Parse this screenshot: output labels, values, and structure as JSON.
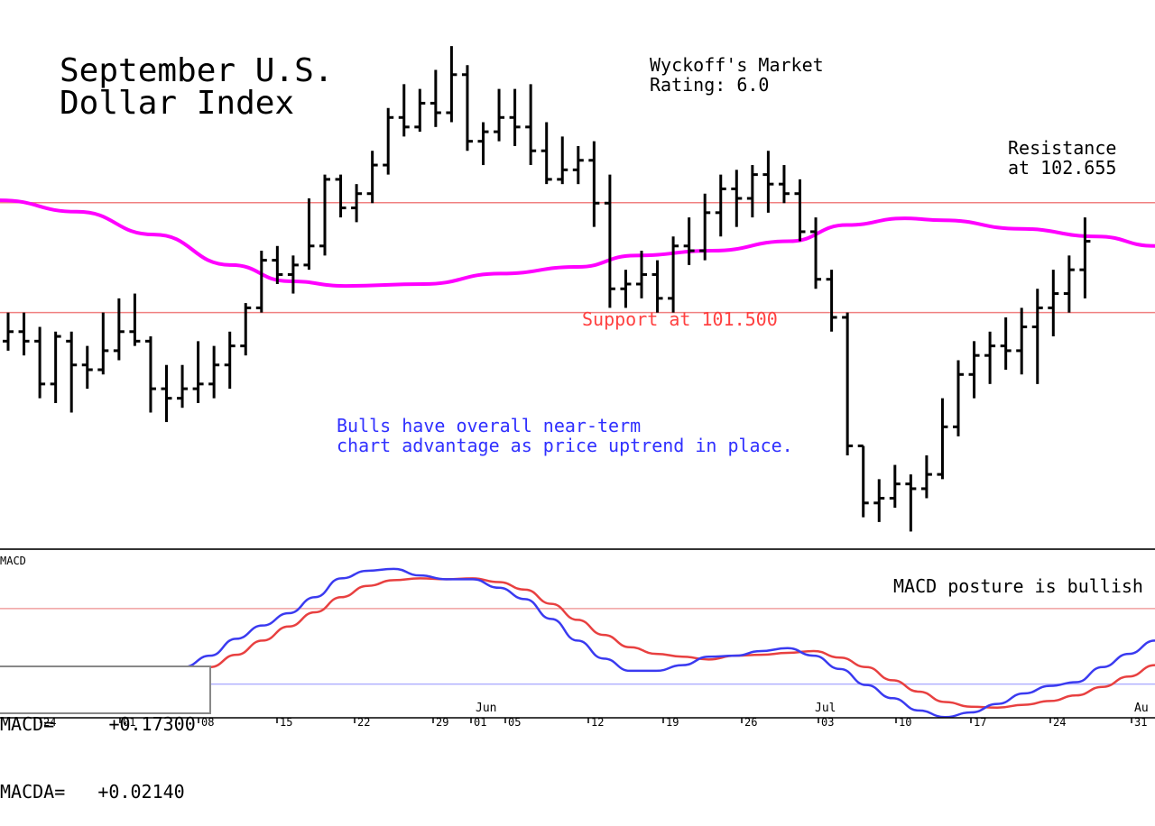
{
  "chart_data": [
    {
      "type": "bar",
      "subtype": "ohlc",
      "title": "September U.S.\nDollar Index",
      "title_lines": [
        "September U.S.",
        "Dollar Index"
      ],
      "rating_lines": [
        "Wyckoff's Market",
        "Rating: 6.0"
      ],
      "annotations": {
        "resistance_lines": [
          "Resistance",
          "at 102.655"
        ],
        "support": "Support at 101.500",
        "commentary_lines": [
          "Bulls have overall near-term",
          "chart advantage as price uptrend in place."
        ]
      },
      "levels": {
        "resistance": 102.655,
        "support": 101.5
      },
      "ylim": [
        99.1,
        104.5
      ],
      "grid": false,
      "x_tick_labels": [
        "24",
        "01",
        "08",
        "15",
        "22",
        "29",
        "01",
        "05",
        "12",
        "19",
        "26",
        "03",
        "10",
        "17",
        "24",
        "31"
      ],
      "month_labels": [
        "Jun",
        "Jul",
        "Au"
      ],
      "moving_average": [
        [
          0,
          102.68
        ],
        [
          8,
          102.56
        ],
        [
          16,
          102.32
        ],
        [
          24,
          102.0
        ],
        [
          30,
          101.83
        ],
        [
          36,
          101.78
        ],
        [
          44,
          101.8
        ],
        [
          52,
          101.91
        ],
        [
          60,
          101.98
        ],
        [
          66,
          102.1
        ],
        [
          74,
          102.15
        ],
        [
          82,
          102.25
        ],
        [
          88,
          102.42
        ],
        [
          94,
          102.49
        ],
        [
          98,
          102.47
        ],
        [
          106,
          102.38
        ],
        [
          114,
          102.3
        ],
        [
          120,
          102.2
        ]
      ],
      "ohlc": [
        [
          101.2,
          101.5,
          101.1,
          101.3
        ],
        [
          101.3,
          101.5,
          101.05,
          101.2
        ],
        [
          101.2,
          101.35,
          100.6,
          100.75
        ],
        [
          100.75,
          101.3,
          100.55,
          101.25
        ],
        [
          101.2,
          101.3,
          100.45,
          100.95
        ],
        [
          100.95,
          101.15,
          100.7,
          100.9
        ],
        [
          100.9,
          101.5,
          100.85,
          101.1
        ],
        [
          101.1,
          101.65,
          101.0,
          101.3
        ],
        [
          101.3,
          101.7,
          101.15,
          101.2
        ],
        [
          101.2,
          101.25,
          100.45,
          100.7
        ],
        [
          100.7,
          100.95,
          100.35,
          100.6
        ],
        [
          100.6,
          100.95,
          100.5,
          100.7
        ],
        [
          100.7,
          101.2,
          100.55,
          100.75
        ],
        [
          100.75,
          101.15,
          100.6,
          100.95
        ],
        [
          100.95,
          101.3,
          100.7,
          101.15
        ],
        [
          101.15,
          101.6,
          101.05,
          101.55
        ],
        [
          101.55,
          102.15,
          101.5,
          102.05
        ],
        [
          102.05,
          102.2,
          101.8,
          101.9
        ],
        [
          101.9,
          102.1,
          101.7,
          102.0
        ],
        [
          102.0,
          102.7,
          101.95,
          102.2
        ],
        [
          102.2,
          102.95,
          102.1,
          102.9
        ],
        [
          102.9,
          102.95,
          102.5,
          102.6
        ],
        [
          102.6,
          102.85,
          102.45,
          102.75
        ],
        [
          102.75,
          103.2,
          102.65,
          103.05
        ],
        [
          103.05,
          103.65,
          102.95,
          103.55
        ],
        [
          103.55,
          103.9,
          103.35,
          103.45
        ],
        [
          103.45,
          103.85,
          103.4,
          103.7
        ],
        [
          103.7,
          104.05,
          103.45,
          103.6
        ],
        [
          103.6,
          104.3,
          103.5,
          104.0
        ],
        [
          104.0,
          104.1,
          103.2,
          103.3
        ],
        [
          103.3,
          103.5,
          103.05,
          103.4
        ],
        [
          103.4,
          103.85,
          103.3,
          103.55
        ],
        [
          103.55,
          103.85,
          103.25,
          103.45
        ],
        [
          103.45,
          103.9,
          103.05,
          103.2
        ],
        [
          103.2,
          103.5,
          102.85,
          102.9
        ],
        [
          102.9,
          103.35,
          102.85,
          103.0
        ],
        [
          103.0,
          103.25,
          102.85,
          103.1
        ],
        [
          103.1,
          103.3,
          102.4,
          102.65
        ],
        [
          102.65,
          102.95,
          101.55,
          101.75
        ],
        [
          101.75,
          101.95,
          101.55,
          101.8
        ],
        [
          101.8,
          102.15,
          101.65,
          101.9
        ],
        [
          101.9,
          102.05,
          101.5,
          101.65
        ],
        [
          101.65,
          102.3,
          101.5,
          102.2
        ],
        [
          102.2,
          102.5,
          102.0,
          102.15
        ],
        [
          102.15,
          102.75,
          102.05,
          102.55
        ],
        [
          102.55,
          102.95,
          102.3,
          102.8
        ],
        [
          102.8,
          103.0,
          102.4,
          102.7
        ],
        [
          102.7,
          103.05,
          102.5,
          102.95
        ],
        [
          102.95,
          103.2,
          102.55,
          102.85
        ],
        [
          102.85,
          103.05,
          102.65,
          102.75
        ],
        [
          102.75,
          102.9,
          102.25,
          102.35
        ],
        [
          102.35,
          102.5,
          101.75,
          101.85
        ],
        [
          101.85,
          101.95,
          101.3,
          101.45
        ],
        [
          101.45,
          101.5,
          100.0,
          100.1
        ],
        [
          100.1,
          100.1,
          99.35,
          99.5
        ],
        [
          99.5,
          99.75,
          99.3,
          99.55
        ],
        [
          99.55,
          99.9,
          99.45,
          99.7
        ],
        [
          99.7,
          99.8,
          99.2,
          99.65
        ],
        [
          99.65,
          100.0,
          99.55,
          99.8
        ],
        [
          99.8,
          100.6,
          99.75,
          100.3
        ],
        [
          100.3,
          101.0,
          100.2,
          100.85
        ],
        [
          100.85,
          101.2,
          100.6,
          101.05
        ],
        [
          101.05,
          101.3,
          100.75,
          101.15
        ],
        [
          101.15,
          101.45,
          100.9,
          101.1
        ],
        [
          101.1,
          101.55,
          100.85,
          101.35
        ],
        [
          101.35,
          101.75,
          100.75,
          101.55
        ],
        [
          101.55,
          101.95,
          101.25,
          101.7
        ],
        [
          101.7,
          102.1,
          101.5,
          101.95
        ],
        [
          101.95,
          102.5,
          101.65,
          102.25
        ]
      ]
    },
    {
      "type": "line",
      "title": "MACD",
      "annotation": "MACD posture is bullish",
      "readout": [
        {
          "label": "MACD=",
          "value": "+0.17300"
        },
        {
          "label": "MACDA=",
          "value": "+0.02140"
        }
      ],
      "ylim": [
        -0.7,
        1.0
      ],
      "reference_levels": [
        0.4,
        -0.4
      ],
      "series": [
        {
          "color": "#3a3af0",
          "points": [
            [
              0,
              -0.52
            ],
            [
              4,
              -0.49
            ],
            [
              8,
              -0.44
            ],
            [
              12,
              -0.36
            ],
            [
              16,
              -0.38
            ],
            [
              20,
              -0.38
            ],
            [
              24,
              -0.33
            ],
            [
              28,
              -0.22
            ],
            [
              32,
              -0.1
            ],
            [
              36,
              0.08
            ],
            [
              40,
              0.22
            ],
            [
              44,
              0.35
            ],
            [
              48,
              0.52
            ],
            [
              52,
              0.72
            ],
            [
              56,
              0.8
            ],
            [
              60,
              0.82
            ],
            [
              64,
              0.75
            ],
            [
              68,
              0.71
            ],
            [
              72,
              0.71
            ],
            [
              76,
              0.62
            ],
            [
              80,
              0.5
            ],
            [
              84,
              0.29
            ],
            [
              88,
              0.06
            ],
            [
              92,
              -0.13
            ],
            [
              96,
              -0.26
            ],
            [
              100,
              -0.26
            ],
            [
              104,
              -0.2
            ],
            [
              108,
              -0.11
            ],
            [
              112,
              -0.1
            ],
            [
              116,
              -0.05
            ],
            [
              120,
              -0.02
            ],
            [
              124,
              -0.1
            ],
            [
              128,
              -0.24
            ],
            [
              132,
              -0.41
            ],
            [
              136,
              -0.55
            ],
            [
              140,
              -0.68
            ],
            [
              144,
              -0.75
            ],
            [
              148,
              -0.7
            ],
            [
              152,
              -0.61
            ],
            [
              156,
              -0.5
            ],
            [
              160,
              -0.42
            ],
            [
              164,
              -0.38
            ],
            [
              168,
              -0.22
            ],
            [
              172,
              -0.08
            ],
            [
              176,
              0.06
            ]
          ]
        },
        {
          "color": "#e84040",
          "points": [
            [
              0,
              -0.54
            ],
            [
              4,
              -0.53
            ],
            [
              8,
              -0.49
            ],
            [
              12,
              -0.46
            ],
            [
              16,
              -0.43
            ],
            [
              20,
              -0.41
            ],
            [
              24,
              -0.38
            ],
            [
              28,
              -0.32
            ],
            [
              32,
              -0.22
            ],
            [
              36,
              -0.09
            ],
            [
              40,
              0.06
            ],
            [
              44,
              0.21
            ],
            [
              48,
              0.36
            ],
            [
              52,
              0.52
            ],
            [
              56,
              0.64
            ],
            [
              60,
              0.7
            ],
            [
              64,
              0.72
            ],
            [
              68,
              0.71
            ],
            [
              72,
              0.72
            ],
            [
              76,
              0.68
            ],
            [
              80,
              0.6
            ],
            [
              84,
              0.45
            ],
            [
              88,
              0.28
            ],
            [
              92,
              0.12
            ],
            [
              96,
              -0.01
            ],
            [
              100,
              -0.08
            ],
            [
              104,
              -0.11
            ],
            [
              108,
              -0.14
            ],
            [
              112,
              -0.1
            ],
            [
              116,
              -0.09
            ],
            [
              120,
              -0.07
            ],
            [
              124,
              -0.05
            ],
            [
              128,
              -0.12
            ],
            [
              132,
              -0.22
            ],
            [
              136,
              -0.36
            ],
            [
              140,
              -0.48
            ],
            [
              144,
              -0.59
            ],
            [
              148,
              -0.64
            ],
            [
              152,
              -0.65
            ],
            [
              156,
              -0.62
            ],
            [
              160,
              -0.58
            ],
            [
              164,
              -0.52
            ],
            [
              168,
              -0.43
            ],
            [
              172,
              -0.32
            ],
            [
              176,
              -0.2
            ]
          ]
        }
      ]
    }
  ],
  "colors": {
    "price_bar": "#000000",
    "moving_average": "#ff00ff",
    "level_line": "#f08080",
    "support_text": "#ff4040",
    "commentary_text": "#3030ff",
    "macd_ref_upper": "#f0a0a0",
    "macd_ref_lower": "#b0b0ff"
  }
}
